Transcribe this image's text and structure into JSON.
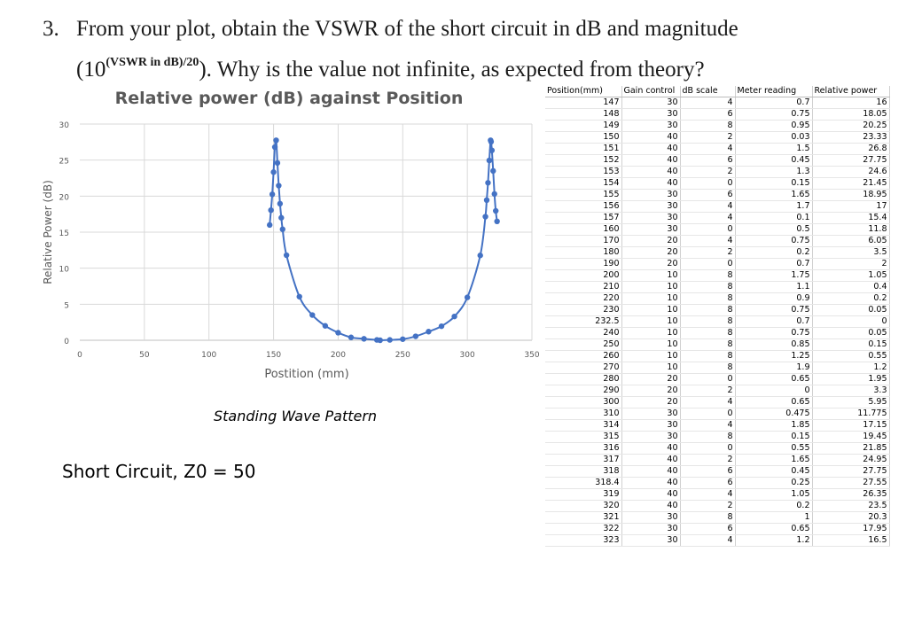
{
  "question": {
    "number": "3.",
    "line1": "From your plot, obtain the VSWR of the short circuit in dB and magnitude",
    "line2_prefix": "(10",
    "line2_sup": "(VSWR in dB)/20",
    "line2_suffix": "). Why is the value not infinite, as expected from theory?"
  },
  "chart_data": {
    "type": "scatter",
    "title": "Relative power (dB) against Position",
    "xlabel": "Postition (mm)",
    "ylabel": "Relative Power (dB)",
    "xlim": [
      0,
      350
    ],
    "ylim": [
      0,
      30
    ],
    "xticks": [
      0,
      50,
      100,
      150,
      200,
      250,
      300,
      350
    ],
    "yticks": [
      0,
      5,
      10,
      15,
      20,
      25,
      30
    ],
    "grid": true,
    "x": [
      147,
      148,
      149,
      150,
      151,
      152,
      153,
      154,
      155,
      156,
      157,
      160,
      170,
      180,
      190,
      200,
      210,
      220,
      230,
      232.5,
      240,
      250,
      260,
      270,
      280,
      290,
      300,
      310,
      314,
      315,
      316,
      317,
      318,
      318.4,
      319,
      320,
      321,
      322,
      323
    ],
    "y": [
      16,
      18.05,
      20.25,
      23.33,
      26.8,
      27.75,
      24.6,
      21.45,
      18.95,
      17,
      15.4,
      11.8,
      6.05,
      3.5,
      2,
      1.05,
      0.4,
      0.2,
      0.05,
      0,
      0.05,
      0.15,
      0.55,
      1.2,
      1.95,
      3.3,
      5.95,
      11.775,
      17.15,
      19.45,
      21.85,
      24.95,
      27.75,
      27.55,
      26.35,
      23.5,
      20.3,
      17.95,
      16.5
    ],
    "color": "#4472C4"
  },
  "caption": "Standing Wave Pattern",
  "circuit_label": "Short Circuit, Z0 = 50",
  "table": {
    "headers": [
      "Position(mm)",
      "Gain control",
      "dB scale",
      "Meter reading",
      "Relative power"
    ],
    "rows": [
      [
        "147",
        "30",
        "4",
        "0.7",
        "16"
      ],
      [
        "148",
        "30",
        "6",
        "0.75",
        "18.05"
      ],
      [
        "149",
        "30",
        "8",
        "0.95",
        "20.25"
      ],
      [
        "150",
        "40",
        "2",
        "0.03",
        "23.33"
      ],
      [
        "151",
        "40",
        "4",
        "1.5",
        "26.8"
      ],
      [
        "152",
        "40",
        "6",
        "0.45",
        "27.75"
      ],
      [
        "153",
        "40",
        "2",
        "1.3",
        "24.6"
      ],
      [
        "154",
        "40",
        "0",
        "0.15",
        "21.45"
      ],
      [
        "155",
        "30",
        "6",
        "1.65",
        "18.95"
      ],
      [
        "156",
        "30",
        "4",
        "1.7",
        "17"
      ],
      [
        "157",
        "30",
        "4",
        "0.1",
        "15.4"
      ],
      [
        "160",
        "30",
        "0",
        "0.5",
        "11.8"
      ],
      [
        "170",
        "20",
        "4",
        "0.75",
        "6.05"
      ],
      [
        "180",
        "20",
        "2",
        "0.2",
        "3.5"
      ],
      [
        "190",
        "20",
        "0",
        "0.7",
        "2"
      ],
      [
        "200",
        "10",
        "8",
        "1.75",
        "1.05"
      ],
      [
        "210",
        "10",
        "8",
        "1.1",
        "0.4"
      ],
      [
        "220",
        "10",
        "8",
        "0.9",
        "0.2"
      ],
      [
        "230",
        "10",
        "8",
        "0.75",
        "0.05"
      ],
      [
        "232.5",
        "10",
        "8",
        "0.7",
        "0"
      ],
      [
        "240",
        "10",
        "8",
        "0.75",
        "0.05"
      ],
      [
        "250",
        "10",
        "8",
        "0.85",
        "0.15"
      ],
      [
        "260",
        "10",
        "8",
        "1.25",
        "0.55"
      ],
      [
        "270",
        "10",
        "8",
        "1.9",
        "1.2"
      ],
      [
        "280",
        "20",
        "0",
        "0.65",
        "1.95"
      ],
      [
        "290",
        "20",
        "2",
        "0",
        "3.3"
      ],
      [
        "300",
        "20",
        "4",
        "0.65",
        "5.95"
      ],
      [
        "310",
        "30",
        "0",
        "0.475",
        "11.775"
      ],
      [
        "314",
        "30",
        "4",
        "1.85",
        "17.15"
      ],
      [
        "315",
        "30",
        "8",
        "0.15",
        "19.45"
      ],
      [
        "316",
        "40",
        "0",
        "0.55",
        "21.85"
      ],
      [
        "317",
        "40",
        "2",
        "1.65",
        "24.95"
      ],
      [
        "318",
        "40",
        "6",
        "0.45",
        "27.75"
      ],
      [
        "318.4",
        "40",
        "6",
        "0.25",
        "27.55"
      ],
      [
        "319",
        "40",
        "4",
        "1.05",
        "26.35"
      ],
      [
        "320",
        "40",
        "2",
        "0.2",
        "23.5"
      ],
      [
        "321",
        "30",
        "8",
        "1",
        "20.3"
      ],
      [
        "322",
        "30",
        "6",
        "0.65",
        "17.95"
      ],
      [
        "323",
        "30",
        "4",
        "1.2",
        "16.5"
      ]
    ]
  }
}
